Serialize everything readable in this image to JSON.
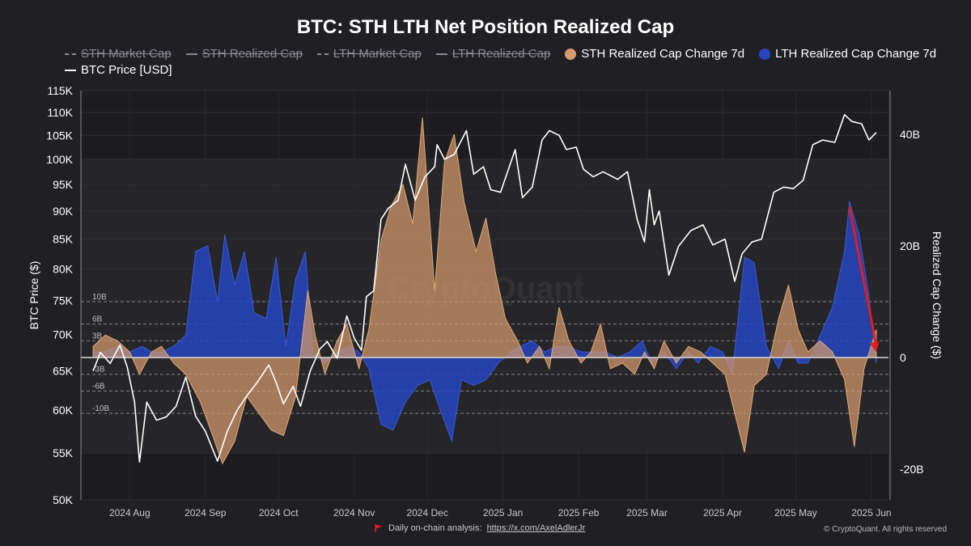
{
  "chart_data": {
    "type": "area",
    "title": "BTC: STH LTH Net Position Realized Cap",
    "legend": {
      "placement": "top",
      "items": [
        {
          "label": "STH Market Cap",
          "style": "dashed",
          "color": "#8a8a92",
          "visible": false
        },
        {
          "label": "STH Realized Cap",
          "style": "line",
          "color": "#8a8a92",
          "visible": false
        },
        {
          "label": "LTH Market Cap",
          "style": "dashed",
          "color": "#8a8a92",
          "visible": false
        },
        {
          "label": "LTH Realized Cap",
          "style": "line",
          "color": "#8a8a92",
          "visible": false
        },
        {
          "label": "STH Realized Cap Change 7d",
          "style": "dot",
          "color": "#d59a6c",
          "visible": true
        },
        {
          "label": "LTH Realized Cap Change 7d",
          "style": "dot",
          "color": "#2745c0",
          "visible": true
        },
        {
          "label": "BTC Price [USD]",
          "style": "line",
          "color": "#ffffff",
          "visible": true
        }
      ]
    },
    "left_axis": {
      "label": "BTC Price ($)",
      "scale": "log",
      "ticks": [
        "115K",
        "110K",
        "105K",
        "100K",
        "95K",
        "90K",
        "85K",
        "80K",
        "75K",
        "70K",
        "65K",
        "60K",
        "55K",
        "50K"
      ]
    },
    "right_axis": {
      "label": "Realized Cap Change ($)",
      "ticks": [
        "40B",
        "20B",
        "0",
        "-20B"
      ]
    },
    "x_axis": {
      "ticks": [
        "2024 Aug",
        "2024 Sep",
        "2024 Oct",
        "2024 Nov",
        "2024 Dec",
        "2025 Jan",
        "2025 Feb",
        "2025 Mar",
        "2025 Apr",
        "2025 May",
        "2025 Jun"
      ]
    },
    "reference_lines": [
      {
        "label": "10B",
        "value": 10
      },
      {
        "label": "6B",
        "value": 6
      },
      {
        "label": "3B",
        "value": 3
      },
      {
        "label": "-3B",
        "value": -3
      },
      {
        "label": "-6B",
        "value": -6
      },
      {
        "label": "-10B",
        "value": -10
      }
    ],
    "grid": true,
    "series": [
      {
        "name": "BTC Price [USD]",
        "axis": "left",
        "color": "#ffffff",
        "points": [
          [
            "2024-07-17",
            65000
          ],
          [
            "2024-07-20",
            67500
          ],
          [
            "2024-07-24",
            66000
          ],
          [
            "2024-07-28",
            68500
          ],
          [
            "2024-07-31",
            65500
          ],
          [
            "2024-08-03",
            61000
          ],
          [
            "2024-08-05",
            54000
          ],
          [
            "2024-08-08",
            61000
          ],
          [
            "2024-08-12",
            58800
          ],
          [
            "2024-08-16",
            59200
          ],
          [
            "2024-08-20",
            60500
          ],
          [
            "2024-08-24",
            64200
          ],
          [
            "2024-08-28",
            59300
          ],
          [
            "2024-09-01",
            57500
          ],
          [
            "2024-09-06",
            54100
          ],
          [
            "2024-09-10",
            57500
          ],
          [
            "2024-09-14",
            60000
          ],
          [
            "2024-09-18",
            61800
          ],
          [
            "2024-09-22",
            63400
          ],
          [
            "2024-09-27",
            65800
          ],
          [
            "2024-09-30",
            63500
          ],
          [
            "2024-10-03",
            60800
          ],
          [
            "2024-10-07",
            63000
          ],
          [
            "2024-10-10",
            60500
          ],
          [
            "2024-10-14",
            65000
          ],
          [
            "2024-10-18",
            68000
          ],
          [
            "2024-10-21",
            69000
          ],
          [
            "2024-10-25",
            66700
          ],
          [
            "2024-10-29",
            72700
          ],
          [
            "2024-11-01",
            69500
          ],
          [
            "2024-11-04",
            67800
          ],
          [
            "2024-11-06",
            75600
          ],
          [
            "2024-11-09",
            76500
          ],
          [
            "2024-11-12",
            88500
          ],
          [
            "2024-11-15",
            90500
          ],
          [
            "2024-11-19",
            92000
          ],
          [
            "2024-11-22",
            99000
          ],
          [
            "2024-11-26",
            92000
          ],
          [
            "2024-11-30",
            96500
          ],
          [
            "2024-12-04",
            98500
          ],
          [
            "2024-12-05",
            103000
          ],
          [
            "2024-12-08",
            100000
          ],
          [
            "2024-12-12",
            101000
          ],
          [
            "2024-12-17",
            106000
          ],
          [
            "2024-12-20",
            97000
          ],
          [
            "2024-12-24",
            98500
          ],
          [
            "2024-12-27",
            94000
          ],
          [
            "2024-12-31",
            93500
          ],
          [
            "2025-01-06",
            102000
          ],
          [
            "2025-01-09",
            92500
          ],
          [
            "2025-01-13",
            94500
          ],
          [
            "2025-01-17",
            104000
          ],
          [
            "2025-01-20",
            106000
          ],
          [
            "2025-01-24",
            105000
          ],
          [
            "2025-01-27",
            102000
          ],
          [
            "2025-01-31",
            102500
          ],
          [
            "2025-02-03",
            98000
          ],
          [
            "2025-02-07",
            96500
          ],
          [
            "2025-02-11",
            97500
          ],
          [
            "2025-02-17",
            96000
          ],
          [
            "2025-02-21",
            97500
          ],
          [
            "2025-02-25",
            88500
          ],
          [
            "2025-02-28",
            84500
          ],
          [
            "2025-03-02",
            94000
          ],
          [
            "2025-03-04",
            87500
          ],
          [
            "2025-03-06",
            90000
          ],
          [
            "2025-03-10",
            79000
          ],
          [
            "2025-03-14",
            83800
          ],
          [
            "2025-03-19",
            86500
          ],
          [
            "2025-03-24",
            87500
          ],
          [
            "2025-03-28",
            84000
          ],
          [
            "2025-04-02",
            85000
          ],
          [
            "2025-04-06",
            78000
          ],
          [
            "2025-04-09",
            82500
          ],
          [
            "2025-04-13",
            84500
          ],
          [
            "2025-04-17",
            85000
          ],
          [
            "2025-04-22",
            93500
          ],
          [
            "2025-04-26",
            94500
          ],
          [
            "2025-04-30",
            94200
          ],
          [
            "2025-05-04",
            95800
          ],
          [
            "2025-05-08",
            103000
          ],
          [
            "2025-05-12",
            104000
          ],
          [
            "2025-05-17",
            103500
          ],
          [
            "2025-05-21",
            109500
          ],
          [
            "2025-05-24",
            108000
          ],
          [
            "2025-05-28",
            107500
          ],
          [
            "2025-05-31",
            104000
          ],
          [
            "2025-06-03",
            105600
          ]
        ]
      },
      {
        "name": "STH Realized Cap Change 7d",
        "axis": "right",
        "color": "#d59a6c",
        "points": [
          [
            "2024-07-17",
            2
          ],
          [
            "2024-07-22",
            4
          ],
          [
            "2024-07-27",
            3
          ],
          [
            "2024-08-01",
            1
          ],
          [
            "2024-08-05",
            -3
          ],
          [
            "2024-08-10",
            1
          ],
          [
            "2024-08-14",
            2
          ],
          [
            "2024-08-19",
            -1
          ],
          [
            "2024-08-24",
            -3
          ],
          [
            "2024-08-30",
            -8
          ],
          [
            "2024-09-04",
            -14
          ],
          [
            "2024-09-08",
            -19
          ],
          [
            "2024-09-13",
            -15
          ],
          [
            "2024-09-18",
            -7
          ],
          [
            "2024-09-23",
            -10
          ],
          [
            "2024-09-28",
            -13
          ],
          [
            "2024-10-03",
            -14
          ],
          [
            "2024-10-08",
            -7
          ],
          [
            "2024-10-13",
            12
          ],
          [
            "2024-10-16",
            4
          ],
          [
            "2024-10-20",
            -3
          ],
          [
            "2024-10-25",
            3
          ],
          [
            "2024-10-29",
            6
          ],
          [
            "2024-11-03",
            -2
          ],
          [
            "2024-11-07",
            5
          ],
          [
            "2024-11-12",
            21
          ],
          [
            "2024-11-16",
            27
          ],
          [
            "2024-11-21",
            31
          ],
          [
            "2024-11-25",
            24
          ],
          [
            "2024-11-29",
            43
          ],
          [
            "2024-12-04",
            12
          ],
          [
            "2024-12-08",
            35
          ],
          [
            "2024-12-12",
            40
          ],
          [
            "2024-12-16",
            28
          ],
          [
            "2024-12-21",
            19
          ],
          [
            "2024-12-25",
            25
          ],
          [
            "2024-12-29",
            15
          ],
          [
            "2025-01-02",
            7
          ],
          [
            "2025-01-07",
            3
          ],
          [
            "2025-01-11",
            -1
          ],
          [
            "2025-01-16",
            2
          ],
          [
            "2025-01-20",
            -2
          ],
          [
            "2025-01-24",
            9
          ],
          [
            "2025-01-28",
            3
          ],
          [
            "2025-02-02",
            -1
          ],
          [
            "2025-02-06",
            1
          ],
          [
            "2025-02-10",
            6
          ],
          [
            "2025-02-14",
            -2
          ],
          [
            "2025-02-19",
            -1
          ],
          [
            "2025-02-24",
            -3
          ],
          [
            "2025-02-28",
            1
          ],
          [
            "2025-03-04",
            -2
          ],
          [
            "2025-03-08",
            3
          ],
          [
            "2025-03-13",
            -1
          ],
          [
            "2025-03-18",
            2
          ],
          [
            "2025-03-23",
            1
          ],
          [
            "2025-03-28",
            -1
          ],
          [
            "2025-04-02",
            -3
          ],
          [
            "2025-04-06",
            -10
          ],
          [
            "2025-04-10",
            -17
          ],
          [
            "2025-04-14",
            -5
          ],
          [
            "2025-04-19",
            -3
          ],
          [
            "2025-04-24",
            7
          ],
          [
            "2025-04-28",
            13
          ],
          [
            "2025-05-02",
            5
          ],
          [
            "2025-05-06",
            1
          ],
          [
            "2025-05-11",
            3
          ],
          [
            "2025-05-16",
            1
          ],
          [
            "2025-05-21",
            -4
          ],
          [
            "2025-05-25",
            -16
          ],
          [
            "2025-05-29",
            -2
          ],
          [
            "2025-06-03",
            5
          ]
        ]
      },
      {
        "name": "LTH Realized Cap Change 7d",
        "axis": "right",
        "color": "#2745c0",
        "points": [
          [
            "2024-07-17",
            1
          ],
          [
            "2024-07-22",
            1
          ],
          [
            "2024-07-27",
            2
          ],
          [
            "2024-08-01",
            1
          ],
          [
            "2024-08-06",
            2
          ],
          [
            "2024-08-10",
            1
          ],
          [
            "2024-08-14",
            1
          ],
          [
            "2024-08-19",
            2
          ],
          [
            "2024-08-24",
            4
          ],
          [
            "2024-08-28",
            19
          ],
          [
            "2024-09-02",
            20
          ],
          [
            "2024-09-06",
            10
          ],
          [
            "2024-09-09",
            22
          ],
          [
            "2024-09-13",
            13
          ],
          [
            "2024-09-17",
            19
          ],
          [
            "2024-09-21",
            8
          ],
          [
            "2024-09-26",
            7
          ],
          [
            "2024-09-30",
            18
          ],
          [
            "2024-10-04",
            2
          ],
          [
            "2024-10-08",
            14
          ],
          [
            "2024-10-12",
            19
          ],
          [
            "2024-10-15",
            1
          ],
          [
            "2024-10-20",
            -1
          ],
          [
            "2024-10-25",
            1
          ],
          [
            "2024-10-30",
            2
          ],
          [
            "2024-11-03",
            1
          ],
          [
            "2024-11-07",
            -2
          ],
          [
            "2024-11-12",
            -12
          ],
          [
            "2024-11-17",
            -13
          ],
          [
            "2024-11-22",
            -8
          ],
          [
            "2024-11-27",
            -5
          ],
          [
            "2024-12-02",
            -4
          ],
          [
            "2024-12-06",
            -9
          ],
          [
            "2024-12-11",
            -15
          ],
          [
            "2024-12-15",
            -4
          ],
          [
            "2024-12-20",
            -5
          ],
          [
            "2024-12-25",
            -4
          ],
          [
            "2024-12-30",
            -1
          ],
          [
            "2025-01-04",
            1
          ],
          [
            "2025-01-08",
            2
          ],
          [
            "2025-01-13",
            3
          ],
          [
            "2025-01-18",
            1
          ],
          [
            "2025-01-23",
            2
          ],
          [
            "2025-01-28",
            2
          ],
          [
            "2025-02-02",
            1
          ],
          [
            "2025-02-07",
            1
          ],
          [
            "2025-02-12",
            1
          ],
          [
            "2025-02-17",
            0
          ],
          [
            "2025-02-22",
            1
          ],
          [
            "2025-02-27",
            3
          ],
          [
            "2025-03-03",
            -1
          ],
          [
            "2025-03-08",
            1
          ],
          [
            "2025-03-13",
            -2
          ],
          [
            "2025-03-18",
            1
          ],
          [
            "2025-03-22",
            -1
          ],
          [
            "2025-03-27",
            2
          ],
          [
            "2025-04-01",
            1
          ],
          [
            "2025-04-05",
            -3
          ],
          [
            "2025-04-10",
            18
          ],
          [
            "2025-04-14",
            17
          ],
          [
            "2025-04-19",
            2
          ],
          [
            "2025-04-24",
            -2
          ],
          [
            "2025-04-28",
            3
          ],
          [
            "2025-05-02",
            -1
          ],
          [
            "2025-05-06",
            -1
          ],
          [
            "2025-05-11",
            4
          ],
          [
            "2025-05-16",
            9
          ],
          [
            "2025-05-21",
            19
          ],
          [
            "2025-05-23",
            28
          ],
          [
            "2025-05-27",
            22
          ],
          [
            "2025-05-31",
            11
          ],
          [
            "2025-06-03",
            -1
          ]
        ]
      }
    ],
    "annotations": [
      {
        "type": "arrow",
        "color": "#e11d1d",
        "from": [
          "2025-05-23",
          27
        ],
        "to": [
          "2025-06-03",
          1
        ]
      }
    ]
  },
  "watermark": "CryptoQuant",
  "footer": {
    "link_prefix": "Daily on-chain analysis:",
    "link_text": "https://x.com/AxelAdlerJr",
    "copyright": "© CryptoQuant. All rights reserved"
  }
}
